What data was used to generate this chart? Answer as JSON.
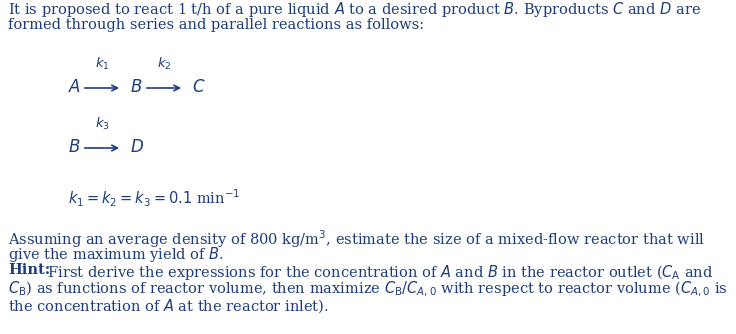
{
  "figsize": [
    7.36,
    3.34
  ],
  "dpi": 100,
  "bg_color": "#ffffff",
  "text_color": "#1f3d7a",
  "font_family": "DejaVu Serif",
  "body_fontsize": 10.5,
  "reaction_fontsize": 12,
  "small_fontsize": 9.5,
  "line1": "It is proposed to react 1 t/h of a pure liquid $\\mathit{A}$ to a desired product $\\mathit{B}$. Byproducts $\\mathit{C}$ and $\\mathit{D}$ are",
  "line2": "formed through series and parallel reactions as follows:",
  "assume1": "Assuming an average density of 800 kg/m$^3$, estimate the size of a mixed-flow reactor that will",
  "assume2": "give the maximum yield of $\\mathit{B}$.",
  "hint_bold": "Hint:",
  "hint2": " First derive the expressions for the concentration of $\\mathit{A}$ and $\\mathit{B}$ in the reactor outlet ($C_\\mathrm{A}$ and",
  "hint3": "$C_\\mathrm{B}$) as functions of reactor volume, then maximize $C_\\mathrm{B}/C_{A,0}$ with respect to reactor volume ($C_{A,0}$ is",
  "hint4": "the concentration of $\\mathit{A}$ at the reactor inlet).",
  "k_eq": "$k_1 = k_2 = k_3 = 0.1$ min$^{-1}$"
}
